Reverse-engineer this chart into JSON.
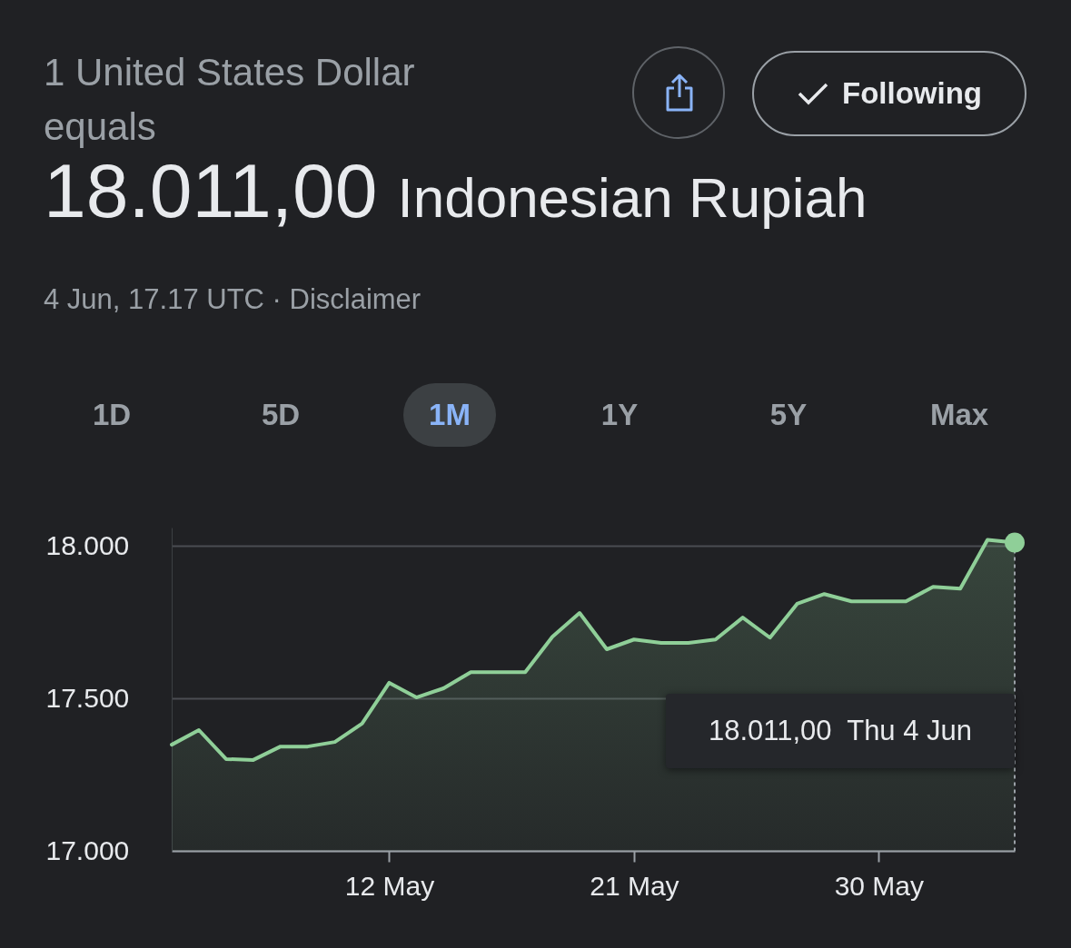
{
  "chart_data": {
    "type": "area",
    "title": "1 United States Dollar equals",
    "subtitle": "18.011,00 Indonesian Rupiah",
    "annotations": [
      "4 Jun, 17.17 UTC · Disclaimer",
      "Following",
      "1D",
      "5D",
      "1M",
      "1Y",
      "5Y",
      "Max",
      "18.011,00  Thu 4 Jun"
    ],
    "x": [
      "--05-04",
      "--05-05",
      "--05-06",
      "--05-07",
      "--05-08",
      "--05-09",
      "--05-10",
      "--05-11",
      "--05-12",
      "--05-13",
      "--05-14",
      "--05-15",
      "--05-16",
      "--05-17",
      "--05-18",
      "--05-19",
      "--05-20",
      "--05-21",
      "--05-22",
      "--05-23",
      "--05-24",
      "--05-25",
      "--05-26",
      "--05-27",
      "--05-28",
      "--05-29",
      "--05-30",
      "--05-31",
      "--06-01",
      "--06-02",
      "--06-03",
      "--06-04"
    ],
    "series": [
      {
        "color": "#8fcf98",
        "values": [
          17348,
          17396,
          17301,
          17298,
          17342,
          17342,
          17357,
          17417,
          17551,
          17503,
          17533,
          17586,
          17586,
          17586,
          17702,
          17780,
          17661,
          17693,
          17682,
          17682,
          17693,
          17765,
          17699,
          17810,
          17842,
          17818,
          17818,
          17818,
          17866,
          17860,
          18020,
          18011
        ]
      }
    ],
    "xlim": [
      "--05-04",
      "--06-04"
    ],
    "xticks": [
      {
        "value": "--05-12",
        "label": "12 May"
      },
      {
        "value": "--05-21",
        "label": "21 May"
      },
      {
        "value": "--05-30",
        "label": "30 May"
      }
    ],
    "ylim": [
      17000,
      18060
    ],
    "yticks": [
      {
        "value": 17000,
        "label": "17.000"
      },
      {
        "value": 17500,
        "label": "17.500"
      },
      {
        "value": 18000,
        "label": "18.000"
      }
    ],
    "grid": "y",
    "marker": "none"
  }
}
